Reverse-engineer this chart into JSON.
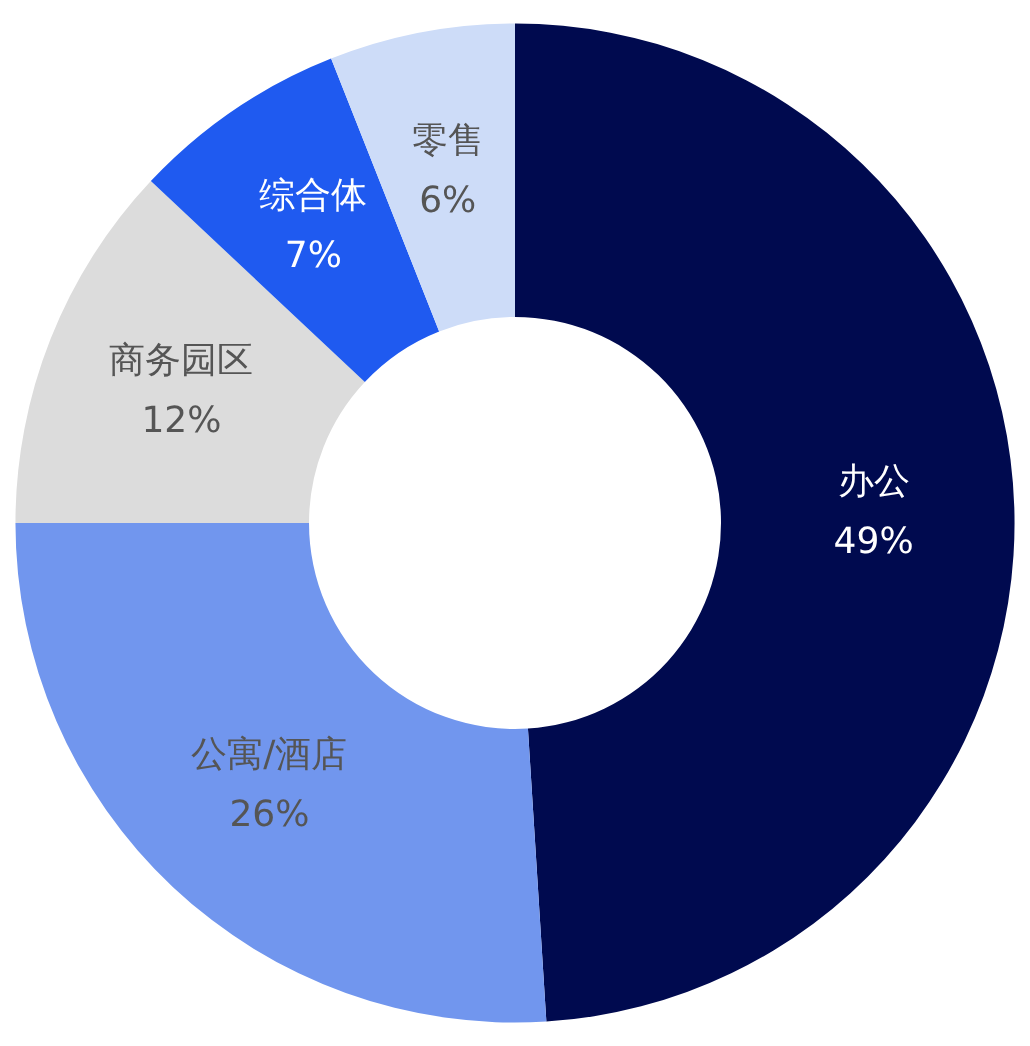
{
  "chart_data": {
    "type": "donut",
    "categories": [
      "办公",
      "公寓/酒店",
      "商务园区",
      "综合体",
      "零售"
    ],
    "values": [
      49,
      26,
      12,
      7,
      6
    ],
    "value_labels": [
      "49%",
      "26%",
      "12%",
      "7%",
      "6%"
    ],
    "colors": [
      "#000a4f",
      "#7196ee",
      "#dcdcdc",
      "#1f5af0",
      "#cddcf8"
    ]
  }
}
